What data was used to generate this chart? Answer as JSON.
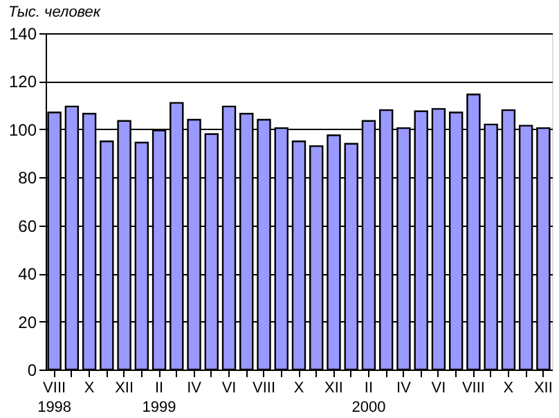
{
  "chart_data": {
    "type": "bar",
    "ylabel": "Тыс. человек",
    "categories": [
      "VIII\n1998",
      null,
      "X",
      null,
      "XII",
      null,
      "II\n1999",
      null,
      "IV",
      null,
      "VI",
      null,
      "VIII",
      null,
      "X",
      null,
      "XII",
      null,
      "II\n2000",
      null,
      "IV",
      null,
      "VI",
      null,
      "VIII",
      null,
      "X",
      null,
      "XII"
    ],
    "values": [
      107,
      109.5,
      106.5,
      95,
      103.5,
      94.5,
      99.5,
      111,
      104,
      98,
      109.5,
      106.5,
      104,
      100.5,
      95,
      93,
      97.5,
      94,
      103.5,
      108,
      100.5,
      107.5,
      108.5,
      107,
      114.5,
      102,
      108,
      101.5,
      100.5
    ],
    "color": "#9999ff",
    "ylim": [
      0,
      140
    ],
    "yticks": [
      0,
      20,
      40,
      60,
      80,
      100,
      120,
      140
    ],
    "grid": "y"
  }
}
